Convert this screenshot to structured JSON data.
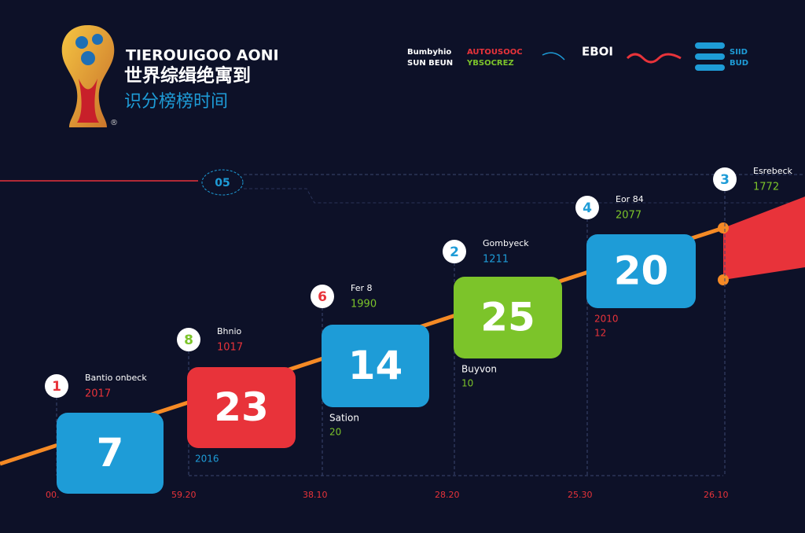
{
  "header": {
    "title": "TIEROUIGOO AONI",
    "subtitle": "世界综缉绝寓到",
    "tagline": "识分榜榜时间",
    "logo_mark": "®"
  },
  "legend": [
    {
      "line1": "Bumbyhio",
      "line2": "SUN BEUN",
      "color1": "#ffffff",
      "color2": "#ffffff"
    },
    {
      "line1": "AUTOUSOOC",
      "line2": "YBSOCREZ",
      "color1": "#e8333a",
      "color2": "#7cc42a"
    },
    {
      "line1": "EBOI",
      "line2": "",
      "color1": "#ffffff",
      "color2": "#ffffff"
    },
    {
      "line1": "SIID",
      "line2": "BUD",
      "color1": "#1e9cd7",
      "color2": "#1e9cd7"
    }
  ],
  "marker": "05",
  "steps": [
    {
      "badge": "1",
      "badge_color": "#e8333a",
      "label": "Bantio onbeck",
      "year": "2017",
      "year_color": "#e8333a",
      "value": 7,
      "box_color": "#1e9cd7",
      "below": null,
      "below_sub": null,
      "below_color": null,
      "axis": "00."
    },
    {
      "badge": "8",
      "badge_color": "#7cc42a",
      "label": "Bhnio",
      "year": "1017",
      "year_color": "#e8333a",
      "value": 23,
      "box_color": "#e8333a",
      "below": null,
      "below_sub": "2016",
      "below_color": "#1e9cd7",
      "axis": "59.20"
    },
    {
      "badge": "6",
      "badge_color": "#e8333a",
      "label": "Fer 8",
      "year": "1990",
      "year_color": "#7cc42a",
      "value": 14,
      "box_color": "#1e9cd7",
      "below": "Sation",
      "below_sub": "20",
      "below_color": "#7cc42a",
      "axis": "38.10"
    },
    {
      "badge": "2",
      "badge_color": "#1e9cd7",
      "label": "Gombyeck",
      "year": "1211",
      "year_color": "#1e9cd7",
      "value": 25,
      "box_color": "#7cc42a",
      "below": "Buyvon",
      "below_sub": "10",
      "below_color": "#7cc42a",
      "axis": "28.20"
    },
    {
      "badge": "4",
      "badge_color": "#1e9cd7",
      "label": "Eor 84",
      "year": "2077",
      "year_color": "#7cc42a",
      "value": 20,
      "box_color": "#1e9cd7",
      "below": "2010",
      "below_sub": "12",
      "below_color": "#e8333a",
      "axis": "25.30"
    },
    {
      "badge": "3",
      "badge_color": "#1e9cd7",
      "label": "Esrebeck",
      "year": "1772",
      "year_color": "#7cc42a",
      "value": null,
      "box_color": null,
      "below": null,
      "below_sub": null,
      "below_color": null,
      "axis": "26.10"
    }
  ]
}
